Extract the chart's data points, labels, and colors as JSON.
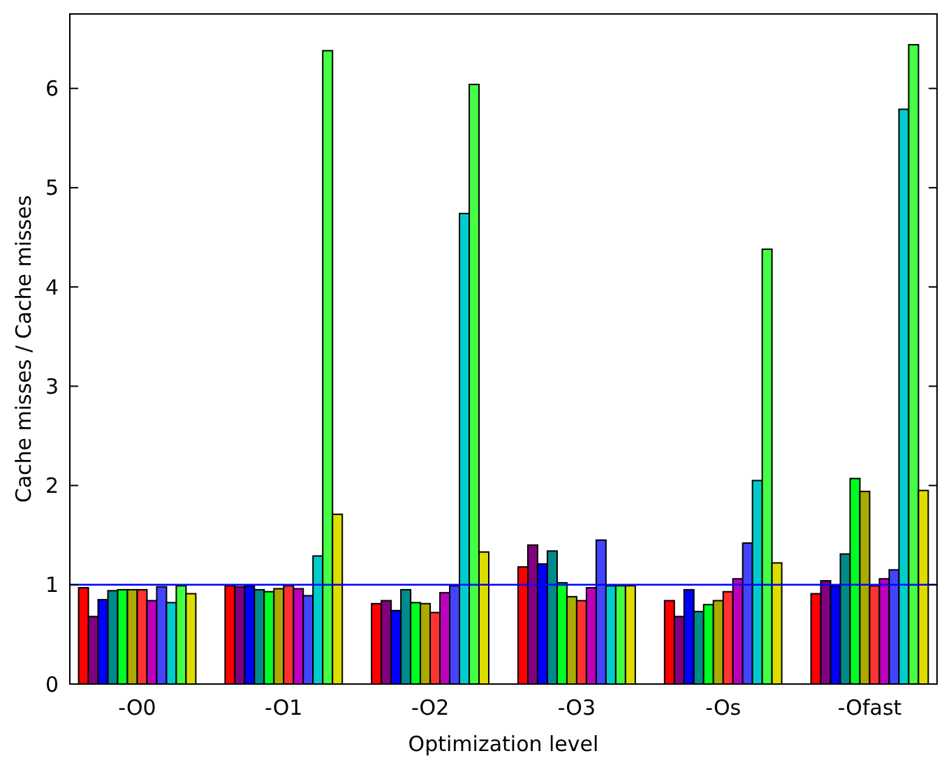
{
  "chart_data": {
    "type": "bar",
    "xlabel": "Optimization level",
    "ylabel": "Cache misses / Cache misses",
    "categories": [
      "-O0",
      "-O1",
      "-O2",
      "-O3",
      "-Os",
      "-Ofast"
    ],
    "series": [
      {
        "color": "#ff0000",
        "values": [
          0.97,
          0.99,
          0.81,
          1.18,
          0.84,
          0.91
        ]
      },
      {
        "color": "#800080",
        "values": [
          0.68,
          0.98,
          0.84,
          1.4,
          0.68,
          1.04
        ]
      },
      {
        "color": "#0000ff",
        "values": [
          0.85,
          0.99,
          0.74,
          1.21,
          0.95,
          0.99
        ]
      },
      {
        "color": "#008b8b",
        "values": [
          0.94,
          0.95,
          0.95,
          1.34,
          0.73,
          1.31
        ]
      },
      {
        "color": "#00ff22",
        "values": [
          0.95,
          0.93,
          0.82,
          1.02,
          0.8,
          2.07
        ]
      },
      {
        "color": "#aaaa00",
        "values": [
          0.95,
          0.96,
          0.81,
          0.88,
          0.84,
          1.94
        ]
      },
      {
        "color": "#ff3333",
        "values": [
          0.95,
          0.99,
          0.72,
          0.84,
          0.93,
          0.99
        ]
      },
      {
        "color": "#bb00bb",
        "values": [
          0.84,
          0.96,
          0.92,
          0.97,
          1.06,
          1.06
        ]
      },
      {
        "color": "#4444ff",
        "values": [
          0.98,
          0.89,
          0.99,
          1.45,
          1.42,
          1.15
        ]
      },
      {
        "color": "#00cccc",
        "values": [
          0.82,
          1.29,
          4.74,
          0.99,
          2.05,
          5.79
        ]
      },
      {
        "color": "#44ff44",
        "values": [
          0.99,
          6.38,
          6.04,
          0.99,
          4.38,
          6.44
        ]
      },
      {
        "color": "#dddd00",
        "values": [
          0.91,
          1.71,
          1.33,
          0.99,
          1.22,
          1.95
        ]
      }
    ],
    "ylim": [
      0,
      6.75
    ],
    "yticks": [
      0,
      1,
      2,
      3,
      4,
      5,
      6
    ],
    "grid": false,
    "ref_lines": [
      {
        "axis": "y",
        "value": 1,
        "color": "#0000ff"
      }
    ]
  }
}
